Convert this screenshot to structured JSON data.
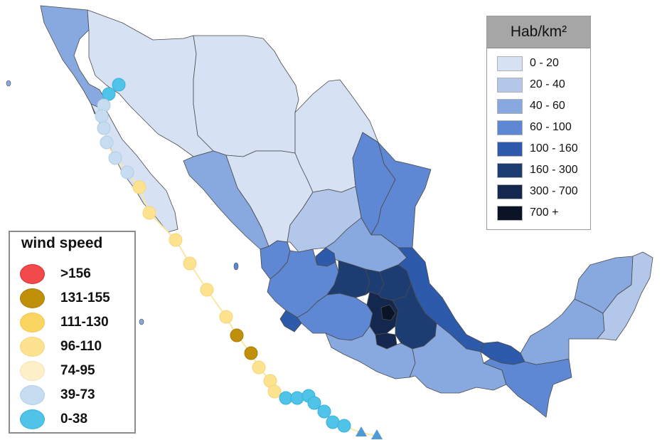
{
  "density_legend": {
    "title": "Hab/km²",
    "items": [
      {
        "label": "0 - 20",
        "color": "#d6e1f3"
      },
      {
        "label": "20 - 40",
        "color": "#b3c7ea"
      },
      {
        "label": "40 - 60",
        "color": "#88a8e0"
      },
      {
        "label": "60 - 100",
        "color": "#5e87d4"
      },
      {
        "label": "100 - 160",
        "color": "#2d5aab"
      },
      {
        "label": "160 - 300",
        "color": "#1d3c72"
      },
      {
        "label": "300 - 700",
        "color": "#14284f"
      },
      {
        "label": "700 +",
        "color": "#0b1326"
      }
    ]
  },
  "wind_legend": {
    "title": "wind speed",
    "items": [
      {
        "label": ">156",
        "color": "#f24a4a",
        "stroke": "#d82f2f"
      },
      {
        "label": "131-155",
        "color": "#c1900a",
        "stroke": "#a87c05"
      },
      {
        "label": "111-130",
        "color": "#fbd561",
        "stroke": "#f2c74a"
      },
      {
        "label": "96-110",
        "color": "#fde28f",
        "stroke": "#f5d57a"
      },
      {
        "label": "74-95",
        "color": "#fdf0c9",
        "stroke": "#f2e3b5"
      },
      {
        "label": "39-73",
        "color": "#c5dcf1",
        "stroke": "#b3cde6"
      },
      {
        "label": "0-38",
        "color": "#4fc3e8",
        "stroke": "#38b1da"
      }
    ]
  },
  "track_colors": {
    "line": "#fbe7a3",
    "triangle": "#4e9ad6"
  }
}
